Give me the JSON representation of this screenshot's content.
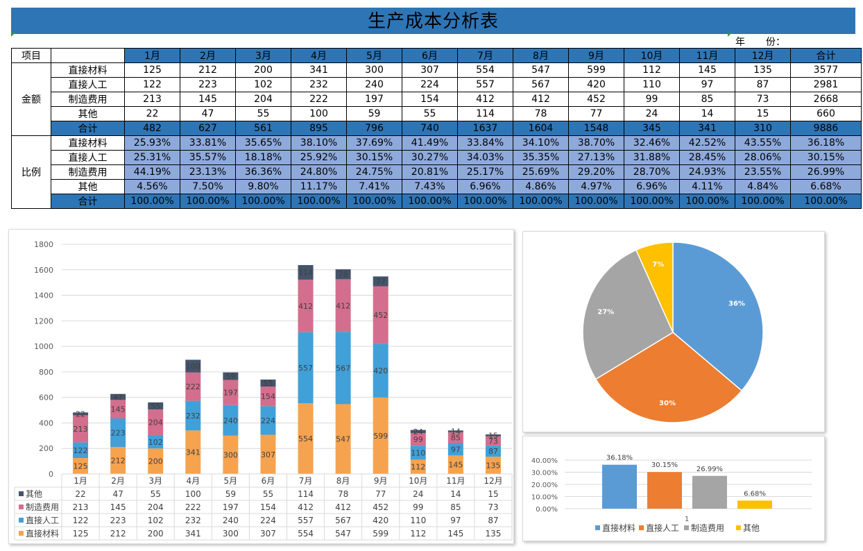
{
  "title": "生产成本分析表",
  "year_label": "年",
  "year_value_label": "份：",
  "table": {
    "header_item": "项目",
    "months": [
      "1月",
      "2月",
      "3月",
      "4月",
      "5月",
      "6月",
      "7月",
      "8月",
      "9月",
      "10月",
      "11月",
      "12月"
    ],
    "total_label": "合计",
    "amount_group": "金额",
    "ratio_group": "比例",
    "amount_rows": [
      {
        "label": "直接材料",
        "values": [
          "125",
          "212",
          "200",
          "341",
          "300",
          "307",
          "554",
          "547",
          "599",
          "112",
          "145",
          "135"
        ],
        "total": "3577"
      },
      {
        "label": "直接人工",
        "values": [
          "122",
          "223",
          "102",
          "232",
          "240",
          "224",
          "557",
          "567",
          "420",
          "110",
          "97",
          "87"
        ],
        "total": "2981"
      },
      {
        "label": "制造费用",
        "values": [
          "213",
          "145",
          "204",
          "222",
          "197",
          "154",
          "412",
          "412",
          "452",
          "99",
          "85",
          "73"
        ],
        "total": "2668"
      },
      {
        "label": "其他",
        "values": [
          "22",
          "47",
          "55",
          "100",
          "59",
          "55",
          "114",
          "78",
          "77",
          "24",
          "14",
          "15"
        ],
        "total": "660"
      }
    ],
    "amount_total_row": {
      "label": "合计",
      "values": [
        "482",
        "627",
        "561",
        "895",
        "796",
        "740",
        "1637",
        "1604",
        "1548",
        "345",
        "341",
        "310"
      ],
      "total": "9886"
    },
    "ratio_rows": [
      {
        "label": "直接材料",
        "values": [
          "25.93%",
          "33.81%",
          "35.65%",
          "38.10%",
          "37.69%",
          "41.49%",
          "33.84%",
          "34.10%",
          "38.70%",
          "32.46%",
          "42.52%",
          "43.55%"
        ],
        "total": "36.18%"
      },
      {
        "label": "直接人工",
        "values": [
          "25.31%",
          "35.57%",
          "18.18%",
          "25.92%",
          "30.15%",
          "30.27%",
          "34.03%",
          "35.35%",
          "27.13%",
          "31.88%",
          "28.45%",
          "28.06%"
        ],
        "total": "30.15%"
      },
      {
        "label": "制造费用",
        "values": [
          "44.19%",
          "23.13%",
          "36.36%",
          "24.80%",
          "24.75%",
          "20.81%",
          "25.17%",
          "25.69%",
          "29.20%",
          "28.70%",
          "24.93%",
          "23.55%"
        ],
        "total": "26.99%"
      },
      {
        "label": "其他",
        "values": [
          "4.56%",
          "7.50%",
          "9.80%",
          "11.17%",
          "7.41%",
          "7.43%",
          "6.96%",
          "4.86%",
          "4.97%",
          "6.96%",
          "4.11%",
          "4.84%"
        ],
        "total": "6.68%"
      }
    ],
    "ratio_total_row": {
      "label": "合计",
      "values": [
        "100.00%",
        "100.00%",
        "100.00%",
        "100.00%",
        "100.00%",
        "100.00%",
        "100.00%",
        "100.00%",
        "100.00%",
        "100.00%",
        "100.00%",
        "100.00%"
      ],
      "total": "100.00%"
    }
  },
  "chart_data": [
    {
      "type": "bar",
      "stacked": true,
      "categories": [
        "1月",
        "2月",
        "3月",
        "4月",
        "5月",
        "6月",
        "7月",
        "8月",
        "9月",
        "10月",
        "11月",
        "12月"
      ],
      "ylim": [
        0,
        1800
      ],
      "yticks": [
        0,
        200,
        400,
        600,
        800,
        1000,
        1200,
        1400,
        1600,
        1800
      ],
      "grid": true,
      "data_table": true,
      "series": [
        {
          "name": "直接材料",
          "color": "#f6a34f",
          "values": [
            125,
            212,
            200,
            341,
            300,
            307,
            554,
            547,
            599,
            112,
            145,
            135
          ]
        },
        {
          "name": "直接人工",
          "color": "#42a0d8",
          "values": [
            122,
            223,
            102,
            232,
            240,
            224,
            557,
            567,
            420,
            110,
            97,
            87
          ]
        },
        {
          "name": "制造费用",
          "color": "#d36e8e",
          "values": [
            213,
            145,
            204,
            222,
            197,
            154,
            412,
            412,
            452,
            99,
            85,
            73
          ]
        },
        {
          "name": "其他",
          "color": "#44546a",
          "values": [
            22,
            47,
            55,
            100,
            59,
            55,
            114,
            78,
            77,
            24,
            14,
            15
          ]
        }
      ]
    },
    {
      "type": "pie",
      "labels": [
        "直接材料",
        "直接人工",
        "制造费用",
        "其他"
      ],
      "values": [
        36.18,
        30.15,
        26.99,
        6.68
      ],
      "data_labels": [
        "36%",
        "30%",
        "27%",
        "7%"
      ],
      "colors": [
        "#5b9bd5",
        "#ed7d31",
        "#a5a5a5",
        "#ffc000"
      ]
    },
    {
      "type": "bar",
      "categories": [
        "1"
      ],
      "ylim": [
        0,
        40
      ],
      "yticks": [
        "0.00%",
        "10.00%",
        "20.00%",
        "30.00%",
        "40.00%"
      ],
      "legend_position": "bottom",
      "series": [
        {
          "name": "直接材料",
          "color": "#5b9bd5",
          "value": 36.18,
          "label": "36.18%"
        },
        {
          "name": "直接人工",
          "color": "#ed7d31",
          "value": 30.15,
          "label": "30.15%"
        },
        {
          "name": "制造费用",
          "color": "#a5a5a5",
          "value": 26.99,
          "label": "26.99%"
        },
        {
          "name": "其他",
          "color": "#ffc000",
          "value": 6.68,
          "label": "6.68%"
        }
      ]
    }
  ]
}
